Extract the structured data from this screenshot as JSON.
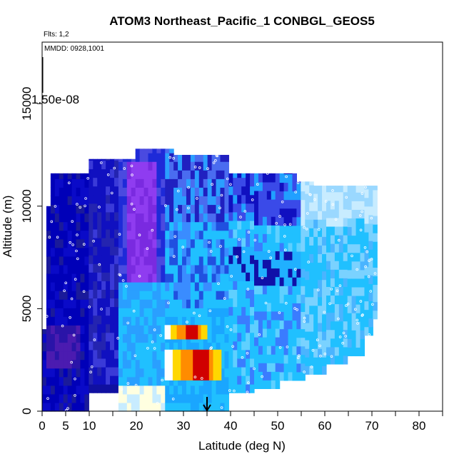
{
  "chart_data": {
    "type": "heatmap",
    "title": "ATOM3 Northeast_Pacific_1 CONBGL_GEOS5",
    "annotations": {
      "flights": "Flts: 1,2",
      "mmdd": "MMDD: 0928,1001",
      "colorbar_value": "1.50e-08"
    },
    "xlabel": "Latitude (deg N)",
    "ylabel": "Altitude (m)",
    "xlim": [
      0,
      85
    ],
    "ylim": [
      0,
      18000
    ],
    "x_ticks": [
      "0",
      "5",
      "10",
      "20",
      "30",
      "40",
      "50",
      "60",
      "70",
      "80"
    ],
    "x_tick_values": [
      0,
      5,
      10,
      20,
      30,
      40,
      50,
      60,
      70,
      80
    ],
    "x_minor_ticks": [
      15,
      25,
      35,
      45,
      55,
      65,
      75,
      85
    ],
    "y_ticks": [
      "0",
      "5000",
      "10000",
      "15000"
    ],
    "y_tick_values": [
      0,
      5000,
      10000,
      15000
    ],
    "arrow_marker_latitude": 35,
    "colors": {
      "low": "#0000b0",
      "mid_blue": "#2a6fff",
      "cyan": "#20c0ff",
      "light": "#c8ecff",
      "white": "#ffffff",
      "yellow": "#ffd700",
      "orange": "#ff8c00",
      "red": "#d00000",
      "purple": "#8a2be2"
    },
    "profile_regions": [
      {
        "lat": [
          0.5,
          10
        ],
        "alt": [
          0,
          11500
        ],
        "level": "low"
      },
      {
        "lat": [
          10,
          16
        ],
        "alt": [
          1000,
          12000
        ],
        "level": "low"
      },
      {
        "lat": [
          16,
          26
        ],
        "alt": [
          0,
          12800
        ],
        "level": "mixed-low"
      },
      {
        "lat": [
          26,
          40
        ],
        "alt": [
          0,
          12500
        ],
        "level": "mixed"
      },
      {
        "lat": [
          40,
          55
        ],
        "alt": [
          1200,
          11500
        ],
        "level": "mid"
      },
      {
        "lat": [
          55,
          72
        ],
        "alt": [
          2500,
          11000
        ],
        "level": "mid-high"
      }
    ],
    "hotspots": [
      {
        "lat": [
          26,
          38
        ],
        "alt": [
          1500,
          3000
        ],
        "level": "high"
      },
      {
        "lat": [
          26,
          35
        ],
        "alt": [
          3500,
          4200
        ],
        "level": "high"
      }
    ]
  }
}
